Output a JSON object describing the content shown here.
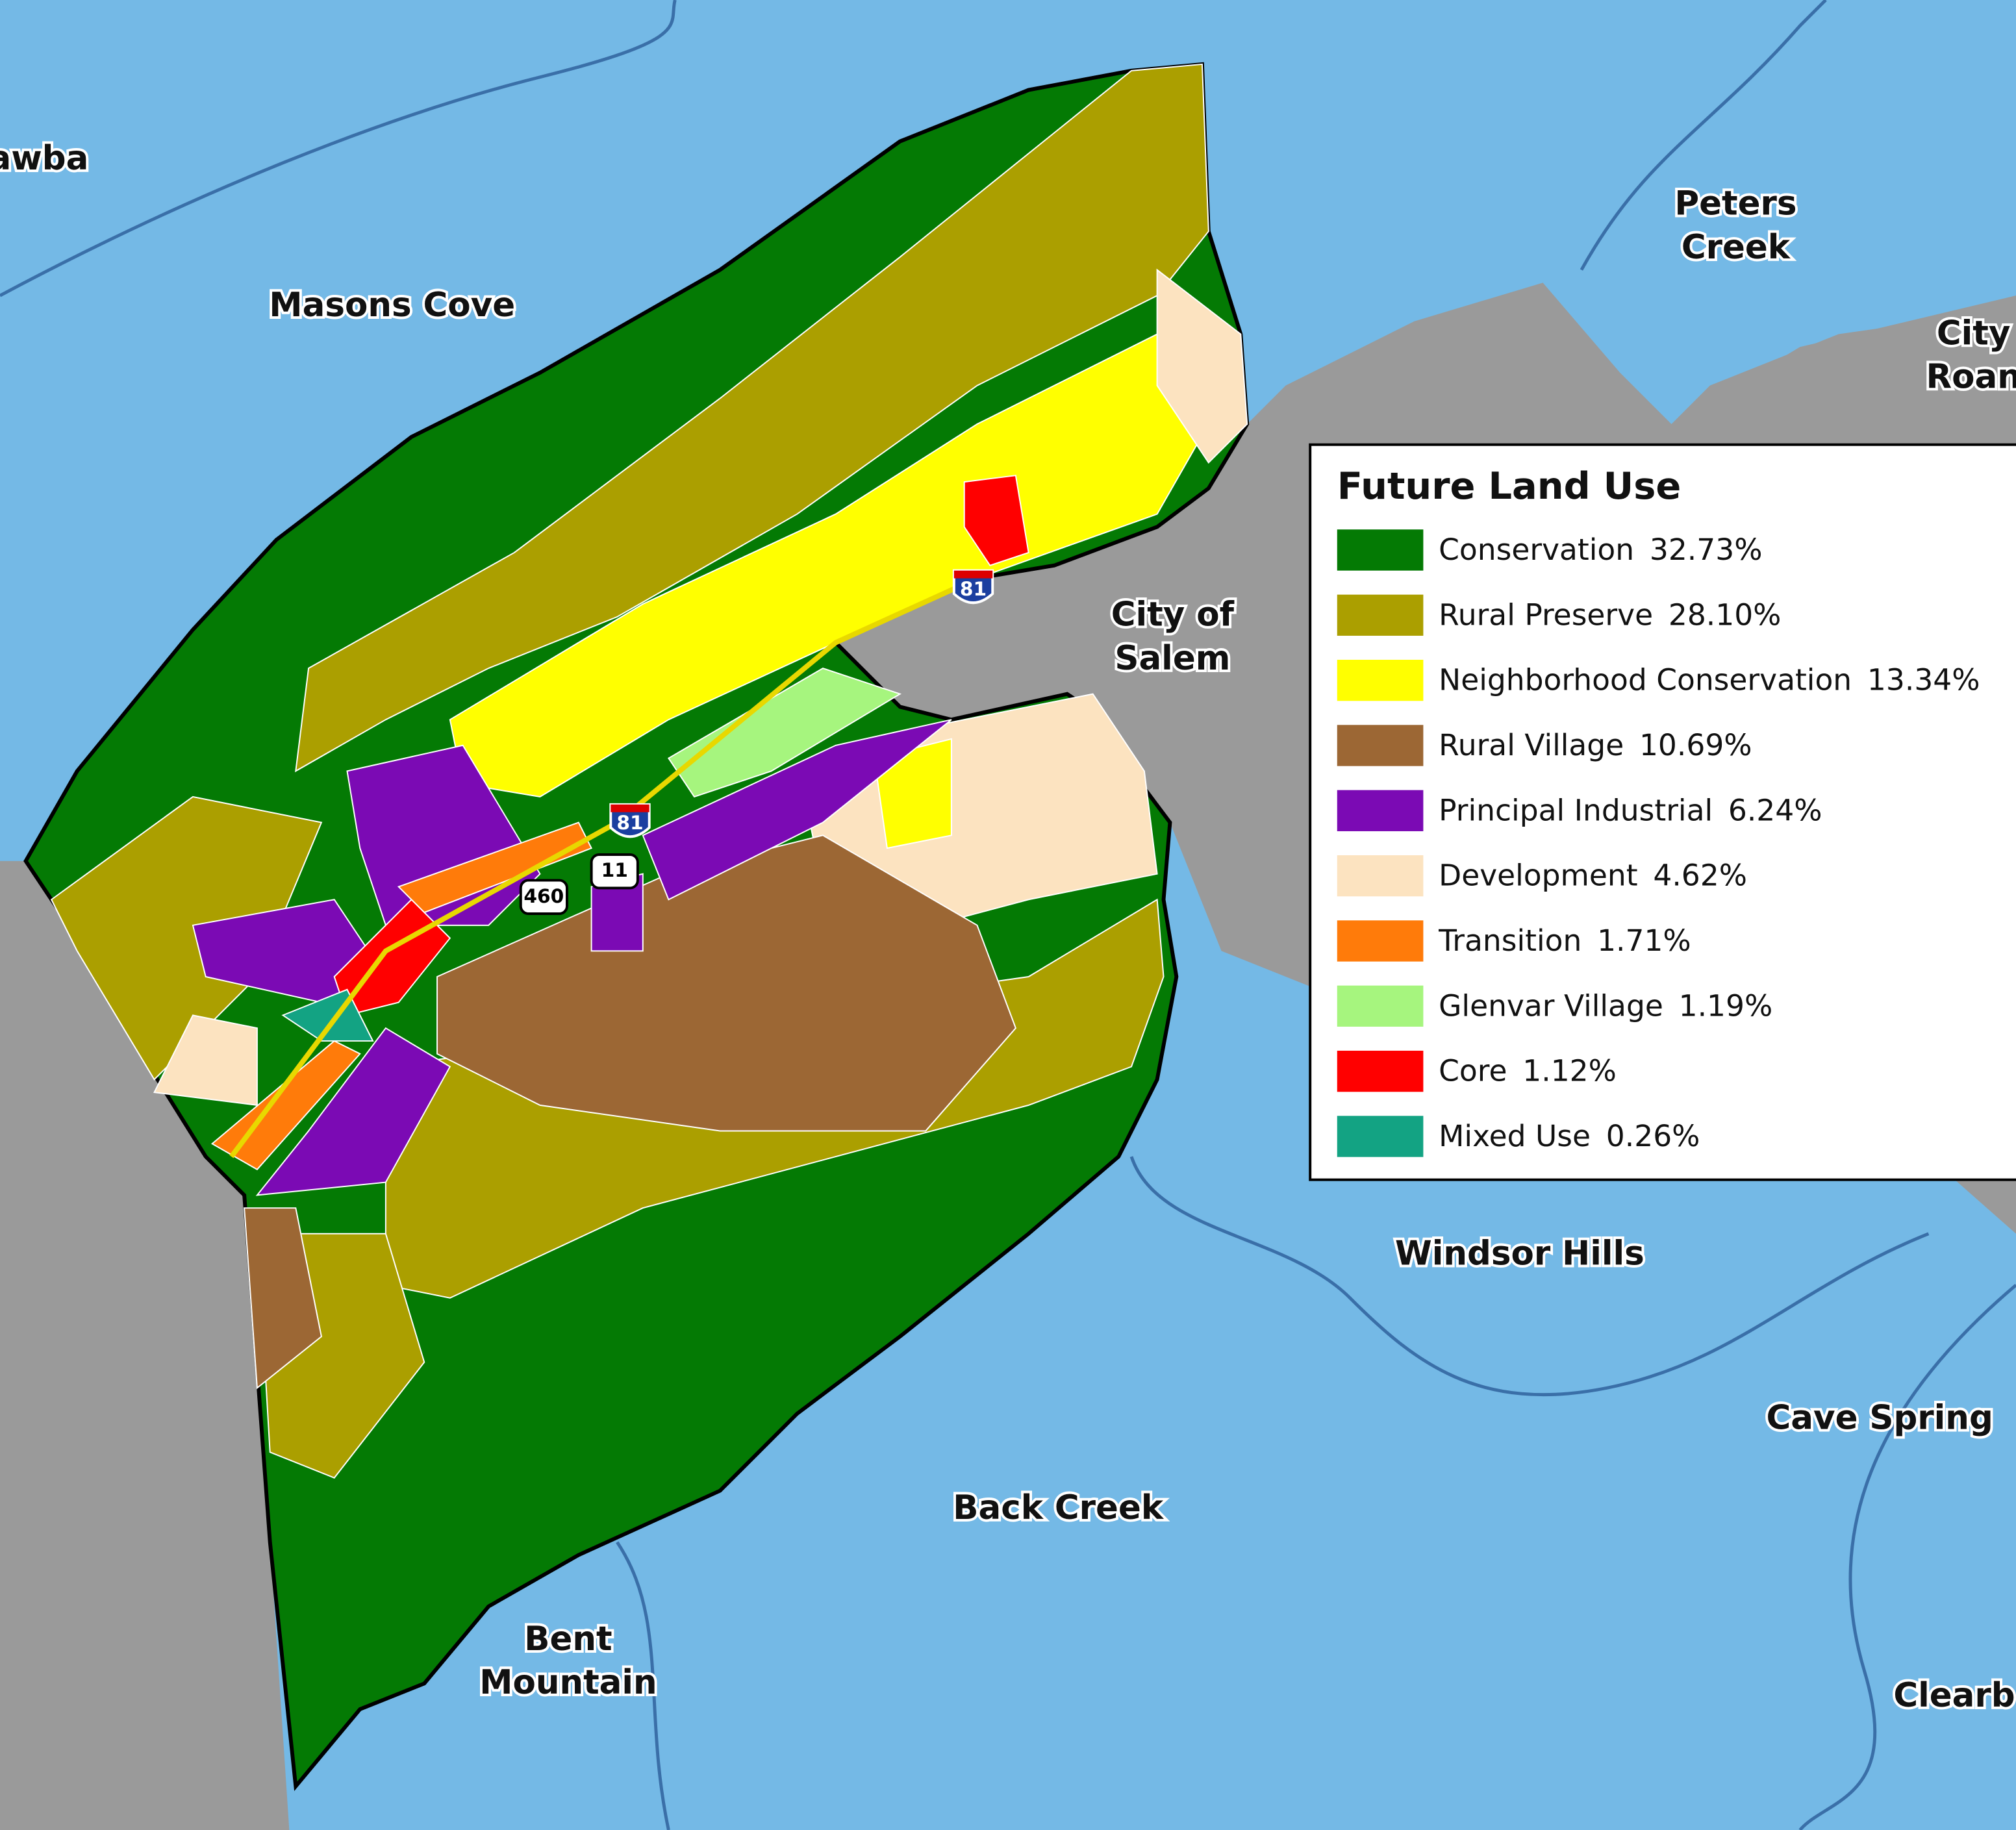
{
  "map": {
    "places": [
      {
        "lines": [
          "awba"
        ]
      },
      {
        "lines": [
          "Masons Cove"
        ]
      },
      {
        "lines": [
          "Peters",
          "Creek"
        ]
      },
      {
        "lines": [
          "City",
          "Roan"
        ]
      },
      {
        "lines": [
          "City of",
          "Salem"
        ]
      },
      {
        "lines": [
          "Windsor Hills"
        ]
      },
      {
        "lines": [
          "Cave Spring"
        ]
      },
      {
        "lines": [
          "Back Creek"
        ]
      },
      {
        "lines": [
          "Bent",
          "Mountain"
        ]
      },
      {
        "lines": [
          "Clearb"
        ]
      }
    ],
    "shields": [
      "81",
      "81",
      "11",
      "460"
    ],
    "legend": {
      "title": "Future Land Use",
      "items": [
        {
          "name": "Conservation",
          "percent": "32.73%",
          "color": "#047a04"
        },
        {
          "name": "Rural Preserve",
          "percent": "28.10%",
          "color": "#ab9f00"
        },
        {
          "name": "Neighborhood Conservation",
          "percent": "13.34%",
          "color": "#ffff00"
        },
        {
          "name": "Rural Village",
          "percent": "10.69%",
          "color": "#9c6734"
        },
        {
          "name": "Principal Industrial",
          "percent": "6.24%",
          "color": "#7b0ab4"
        },
        {
          "name": "Development",
          "percent": "4.62%",
          "color": "#fce3c0"
        },
        {
          "name": "Transition",
          "percent": "1.71%",
          "color": "#ff7b0a"
        },
        {
          "name": "Glenvar Village",
          "percent": "1.19%",
          "color": "#a6f57e"
        },
        {
          "name": "Core",
          "percent": "1.12%",
          "color": "#ff0000"
        },
        {
          "name": "Mixed Use",
          "percent": "0.26%",
          "color": "#13a383"
        }
      ]
    }
  }
}
